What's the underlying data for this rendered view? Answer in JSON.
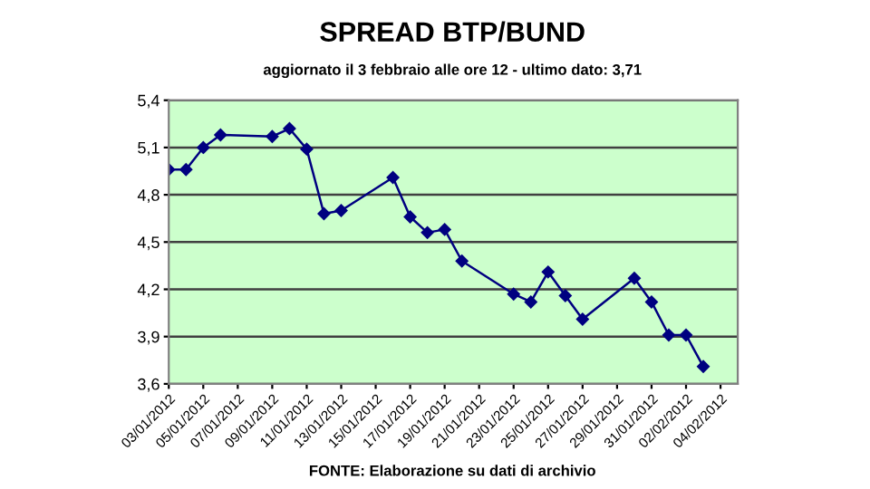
{
  "chart_data": {
    "type": "line",
    "title": "SPREAD BTP/BUND",
    "subtitle": "aggiornato il 3 febbraio alle ore 12 - ultimo dato: 3,71",
    "annotations": [
      "FONTE: Elaborazione su dati di archivio"
    ],
    "x": [
      "2012-01-03",
      "2012-01-04",
      "2012-01-05",
      "2012-01-06",
      "2012-01-09",
      "2012-01-10",
      "2012-01-11",
      "2012-01-12",
      "2012-01-13",
      "2012-01-16",
      "2012-01-17",
      "2012-01-18",
      "2012-01-19",
      "2012-01-20",
      "2012-01-23",
      "2012-01-24",
      "2012-01-25",
      "2012-01-26",
      "2012-01-27",
      "2012-01-30",
      "2012-01-31",
      "2012-02-01",
      "2012-02-02",
      "2012-02-03"
    ],
    "series": [
      {
        "color": "#000080",
        "values": [
          4.96,
          4.96,
          5.1,
          5.18,
          5.17,
          5.22,
          5.09,
          4.68,
          4.7,
          4.91,
          4.66,
          4.56,
          4.58,
          4.38,
          4.17,
          4.12,
          4.31,
          4.16,
          4.01,
          4.27,
          4.12,
          3.91,
          3.91,
          3.71
        ]
      }
    ],
    "xlim": [
      "2012-01-03",
      "2012-02-05"
    ],
    "xticks": [
      {
        "value": "2012-01-03",
        "label": "03/01/2012"
      },
      {
        "value": "2012-01-05",
        "label": "05/01/2012"
      },
      {
        "value": "2012-01-07",
        "label": "07/01/2012"
      },
      {
        "value": "2012-01-09",
        "label": "09/01/2012"
      },
      {
        "value": "2012-01-11",
        "label": "11/01/2012"
      },
      {
        "value": "2012-01-13",
        "label": "13/01/2012"
      },
      {
        "value": "2012-01-15",
        "label": "15/01/2012"
      },
      {
        "value": "2012-01-17",
        "label": "17/01/2012"
      },
      {
        "value": "2012-01-19",
        "label": "19/01/2012"
      },
      {
        "value": "2012-01-21",
        "label": "21/01/2012"
      },
      {
        "value": "2012-01-23",
        "label": "23/01/2012"
      },
      {
        "value": "2012-01-25",
        "label": "25/01/2012"
      },
      {
        "value": "2012-01-27",
        "label": "27/01/2012"
      },
      {
        "value": "2012-01-29",
        "label": "29/01/2012"
      },
      {
        "value": "2012-01-31",
        "label": "31/01/2012"
      },
      {
        "value": "2012-02-02",
        "label": "02/02/2012"
      },
      {
        "value": "2012-02-04",
        "label": "04/02/2012"
      }
    ],
    "ylim": [
      3.6,
      5.4
    ],
    "yticks": [
      {
        "value": 3.6,
        "label": "3,6"
      },
      {
        "value": 3.9,
        "label": "3,9"
      },
      {
        "value": 4.2,
        "label": "4,2"
      },
      {
        "value": 4.5,
        "label": "4,5"
      },
      {
        "value": 4.8,
        "label": "4,8"
      },
      {
        "value": 5.1,
        "label": "5,1"
      },
      {
        "value": 5.4,
        "label": "5,4"
      }
    ],
    "grid": "y",
    "marker": "diamond",
    "line_style": "solid",
    "legend": false
  }
}
